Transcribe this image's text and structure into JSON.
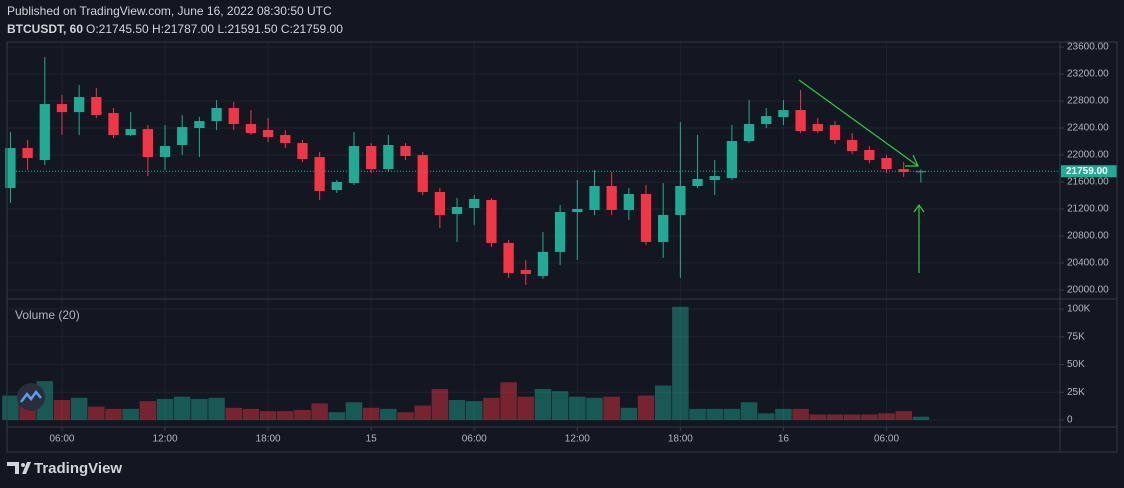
{
  "header": {
    "published": "Published on TradingView.com, June 16, 2022 08:30:50 UTC",
    "symbol": "BTCUSDT, 60",
    "ohlc": "O:21745.50 H:21787.00 L:21591.50 C:21759.00"
  },
  "brand": "TradingView",
  "chart_data": {
    "type": "candlestick",
    "up_color": "#22ab94",
    "down_color": "#f23645",
    "open": [
      21511,
      22104,
      21925,
      22755,
      22636,
      22859,
      22622,
      22296,
      22385,
      21970,
      22148,
      22400,
      22503,
      22696,
      22459,
      22370,
      22296,
      22177,
      21970,
      21481,
      21585,
      22133,
      21792,
      22133,
      21999,
      21451,
      21126,
      21214,
      21333,
      20696,
      20296,
      20207,
      20563,
      21155,
      21185,
      21540,
      21185,
      21422,
      20711,
      21111,
      21540,
      21629,
      21659,
      22207,
      22459,
      22562,
      22666,
      22459,
      22444,
      22222,
      22074,
      21955,
      21792,
      21745.5
    ],
    "high": [
      22341,
      22222,
      23451,
      22888,
      23036,
      22992,
      22696,
      22636,
      22444,
      22444,
      22592,
      22562,
      22814,
      22785,
      22666,
      22548,
      22370,
      22222,
      22044,
      21629,
      22340,
      22177,
      22296,
      22177,
      22044,
      21511,
      21362,
      21407,
      21362,
      20740,
      20444,
      20859,
      21259,
      21629,
      21777,
      21748,
      21511,
      21555,
      21585,
      22488,
      22296,
      21925,
      22444,
      22814,
      22696,
      22814,
      22962,
      22548,
      22503,
      22325,
      22133,
      21999,
      21896,
      21787
    ],
    "low": [
      21289,
      21777,
      21851,
      22296,
      22296,
      22548,
      22251,
      22281,
      21688,
      21777,
      21999,
      21970,
      22370,
      22370,
      22296,
      22192,
      22104,
      21896,
      21333,
      21437,
      21555,
      21733,
      21748,
      21925,
      21407,
      20918,
      20711,
      20962,
      20637,
      20178,
      20074,
      20163,
      20370,
      20444,
      21111,
      21111,
      21037,
      20666,
      20474,
      20178,
      21511,
      21407,
      21629,
      22177,
      22400,
      22444,
      22325,
      22325,
      22162,
      22014,
      21881,
      21733,
      21674,
      21591.5
    ],
    "close": [
      22104,
      21955,
      22755,
      22636,
      22859,
      22592,
      22296,
      22385,
      21970,
      22133,
      22414,
      22503,
      22696,
      22459,
      22325,
      22266,
      22177,
      21940,
      21466,
      21600,
      22133,
      21792,
      22148,
      21985,
      21451,
      21111,
      21229,
      21348,
      20696,
      20252,
      20237,
      20563,
      21155,
      21200,
      21540,
      21185,
      21422,
      20711,
      21111,
      21540,
      21644,
      21688,
      22207,
      22459,
      22577,
      22666,
      22355,
      22355,
      22222,
      22059,
      21925,
      21792,
      21748,
      21759
    ],
    "volume": [
      22000,
      23000,
      35000,
      18000,
      20000,
      12000,
      10000,
      10000,
      17000,
      19000,
      21000,
      19000,
      20000,
      11000,
      10000,
      8000,
      8000,
      9000,
      15000,
      7000,
      16000,
      11000,
      10000,
      7000,
      13000,
      28000,
      18000,
      17000,
      20000,
      34000,
      21000,
      28000,
      26000,
      21000,
      20000,
      21000,
      11000,
      22000,
      31000,
      102000,
      10000,
      10000,
      10000,
      16000,
      6000,
      10000,
      10000,
      5000,
      5000,
      5000,
      5000,
      6000,
      8000,
      3000
    ],
    "xlim": [
      -0.2,
      61.1
    ],
    "xticks": [
      {
        "value": 3,
        "label": "06:00"
      },
      {
        "value": 9,
        "label": "12:00"
      },
      {
        "value": 15,
        "label": "18:00"
      },
      {
        "value": 21,
        "label": "15"
      },
      {
        "value": 27,
        "label": "06:00"
      },
      {
        "value": 33,
        "label": "12:00"
      },
      {
        "value": 39,
        "label": "18:00"
      },
      {
        "value": 45,
        "label": "16"
      },
      {
        "value": 51,
        "label": "06:00"
      }
    ],
    "ylim": [
      19880,
      23675
    ],
    "yticks": [
      {
        "value": 20000,
        "label": "20000.00"
      },
      {
        "value": 20400,
        "label": "20400.00"
      },
      {
        "value": 20800,
        "label": "20800.00"
      },
      {
        "value": 21200,
        "label": "21200.00"
      },
      {
        "value": 21600,
        "label": "21600.00"
      },
      {
        "value": 22000,
        "label": "22000.00"
      },
      {
        "value": 22400,
        "label": "22400.00"
      },
      {
        "value": 22800,
        "label": "22800.00"
      },
      {
        "value": 23200,
        "label": "23200.00"
      },
      {
        "value": 23600,
        "label": "23600.00"
      }
    ],
    "last_price_label": "21759.00",
    "volume_title": "Volume (20)",
    "volume_ylim": [
      -6300,
      108100
    ],
    "volume_yticks": [
      0,
      {
        "value": 25000,
        "label": "25K"
      },
      {
        "value": 50000,
        "label": "50K"
      },
      {
        "value": 75000,
        "label": "75K"
      },
      {
        "value": 100000,
        "label": "100K"
      }
    ],
    "grid": true
  }
}
